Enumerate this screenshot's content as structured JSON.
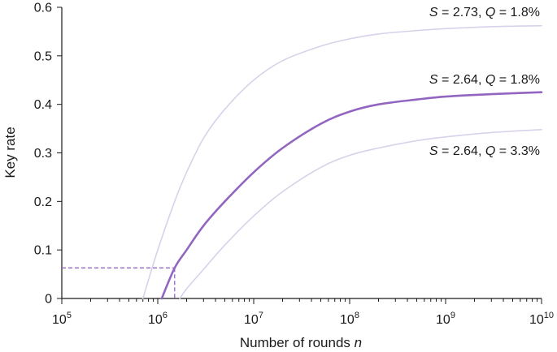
{
  "chart_data": {
    "type": "line",
    "title": "",
    "xlabel": "Number of rounds",
    "xlabel_var": "n",
    "ylabel": "Key rate",
    "x_scale": "log",
    "xlim": [
      100000,
      10000000000
    ],
    "ylim": [
      0,
      0.6
    ],
    "x_tick_labels": [
      {
        "base": "10",
        "exp": "5",
        "value": 100000
      },
      {
        "base": "10",
        "exp": "6",
        "value": 1000000
      },
      {
        "base": "10",
        "exp": "7",
        "value": 10000000
      },
      {
        "base": "10",
        "exp": "8",
        "value": 100000000
      },
      {
        "base": "10",
        "exp": "9",
        "value": 1000000000
      },
      {
        "base": "10",
        "exp": "10",
        "value": 10000000000
      }
    ],
    "y_tick_labels": [
      "0",
      "0.1",
      "0.2",
      "0.3",
      "0.4",
      "0.5",
      "0.6"
    ],
    "y_ticks": [
      0,
      0.1,
      0.2,
      0.3,
      0.4,
      0.5,
      0.6
    ],
    "grid": false,
    "legend": "inline-right",
    "series": [
      {
        "s_value": "2.73",
        "q_value": "1.8%",
        "color": "#d9d1ea",
        "emphasis": false,
        "x": [
          700000,
          1000000,
          1500000,
          2000000,
          3000000,
          5000000,
          10000000,
          20000000,
          50000000,
          100000000,
          200000000,
          500000000,
          1000000000,
          3000000000,
          10000000000
        ],
        "y": [
          0,
          0.1,
          0.2,
          0.26,
          0.33,
          0.39,
          0.45,
          0.49,
          0.52,
          0.535,
          0.545,
          0.552,
          0.556,
          0.56,
          0.562
        ]
      },
      {
        "s_value": "2.64",
        "q_value": "1.8%",
        "color": "#9266c0",
        "emphasis": true,
        "x": [
          1100000,
          1500000,
          2000000,
          3000000,
          5000000,
          10000000,
          20000000,
          50000000,
          100000000,
          200000000,
          500000000,
          1000000000,
          3000000000,
          10000000000
        ],
        "y": [
          0,
          0.063,
          0.1,
          0.15,
          0.2,
          0.26,
          0.31,
          0.36,
          0.385,
          0.4,
          0.41,
          0.416,
          0.421,
          0.425
        ]
      },
      {
        "s_value": "2.64",
        "q_value": "3.3%",
        "color": "#d9d1ea",
        "emphasis": false,
        "x": [
          1700000,
          2000000,
          3000000,
          5000000,
          10000000,
          20000000,
          50000000,
          100000000,
          200000000,
          500000000,
          1000000000,
          3000000000,
          10000000000
        ],
        "y": [
          0,
          0.02,
          0.06,
          0.11,
          0.17,
          0.22,
          0.27,
          0.295,
          0.31,
          0.325,
          0.333,
          0.342,
          0.348
        ]
      }
    ],
    "marker_point": {
      "x": 1500000,
      "y": 0.063,
      "color": "#9266c0",
      "style": "dashed"
    }
  }
}
